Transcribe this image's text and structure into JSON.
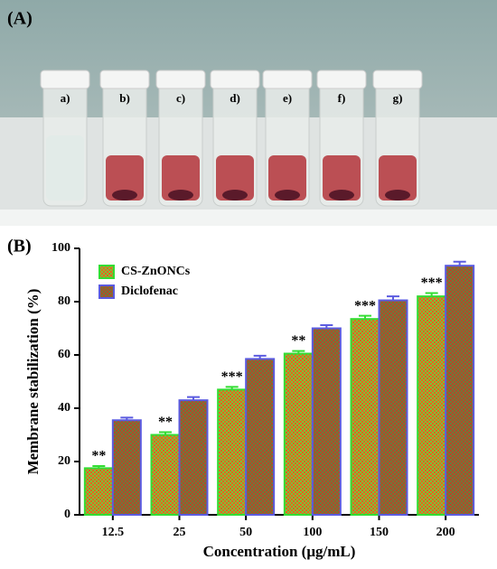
{
  "photo": {
    "panel_label": "(A)",
    "tube_labels": [
      "a)",
      "b)",
      "c)",
      "d)",
      "e)",
      "f)",
      "g)"
    ]
  },
  "chart_data": {
    "type": "bar",
    "panel_label": "(B)",
    "xlabel": "Concentration (μg/mL)",
    "ylabel": "Membrane stabilization (%)",
    "categories": [
      "12.5",
      "25",
      "50",
      "100",
      "150",
      "200"
    ],
    "series": [
      {
        "name": "CS-ZnONCs",
        "color": "#e8641e",
        "edgecolor": "#33dd33",
        "values": [
          17.5,
          30,
          47,
          60.5,
          73.5,
          82
        ],
        "errors": [
          0.8,
          1,
          1,
          1,
          1.2,
          1.2
        ]
      },
      {
        "name": "Diclofenac",
        "color": "#8a8a3a",
        "edgecolor": "#5b5be0",
        "values": [
          35.5,
          43,
          58.5,
          70,
          80.5,
          93.5
        ],
        "errors": [
          1,
          1.2,
          1.2,
          1.2,
          1.5,
          1.5
        ]
      }
    ],
    "annotations": [
      "**",
      "**",
      "***",
      "**",
      "***",
      "***"
    ],
    "ylim": [
      0,
      100
    ],
    "yticks": [
      0,
      20,
      40,
      60,
      80,
      100
    ],
    "legend": "upper left"
  }
}
